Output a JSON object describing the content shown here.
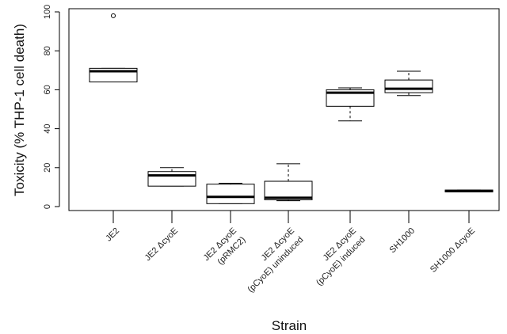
{
  "chart_data": {
    "type": "boxplot",
    "xlabel": "Strain",
    "ylabel": "Toxicity (% THP-1 cell death)",
    "ylim": [
      0,
      100
    ],
    "yticks": [
      "0",
      "20",
      "40",
      "60",
      "80",
      "100"
    ],
    "grid": false,
    "categories": [
      {
        "lines": [
          "JE2"
        ]
      },
      {
        "lines": [
          "JE2 ΔcyoE"
        ]
      },
      {
        "lines": [
          "JE2 ΔcyoE",
          "(pRMC2)"
        ]
      },
      {
        "lines": [
          "JE2 ΔcyoE",
          "(pCyoE) uninduced"
        ]
      },
      {
        "lines": [
          "JE2 ΔcyoE",
          "(pCyoE) induced"
        ]
      },
      {
        "lines": [
          "SH1000"
        ]
      },
      {
        "lines": [
          "SH1000 ΔcyoE"
        ]
      }
    ],
    "boxes": [
      {
        "min": 64,
        "q1": 64,
        "median": 69.5,
        "q3": 71,
        "max": 71,
        "outliers": [
          98
        ]
      },
      {
        "min": 10.5,
        "q1": 10.5,
        "median": 16,
        "q3": 18,
        "max": 20,
        "outliers": []
      },
      {
        "min": 1.5,
        "q1": 1.5,
        "median": 5,
        "q3": 11.5,
        "max": 12,
        "outliers": []
      },
      {
        "min": 3,
        "q1": 3.5,
        "median": 4.5,
        "q3": 13,
        "max": 22,
        "outliers": []
      },
      {
        "min": 44,
        "q1": 51.5,
        "median": 58.5,
        "q3": 60,
        "max": 61,
        "outliers": []
      },
      {
        "min": 57,
        "q1": 58.5,
        "median": 60.5,
        "q3": 65,
        "max": 69.5,
        "outliers": []
      },
      {
        "min": 7.5,
        "q1": 7.5,
        "median": 8,
        "q3": 8.5,
        "max": 8.5,
        "outliers": []
      }
    ]
  }
}
